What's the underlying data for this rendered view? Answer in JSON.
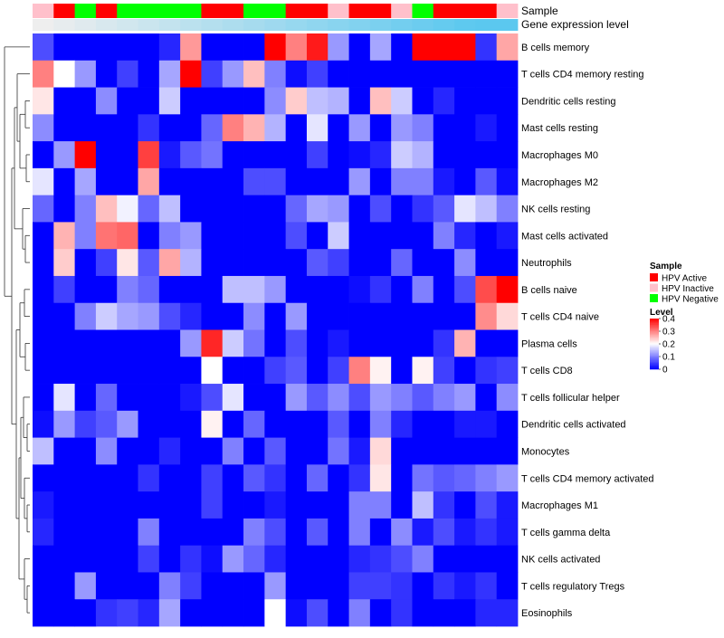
{
  "chart_data": {
    "type": "heatmap",
    "annotation_tracks": [
      "Sample",
      "Gene expression level"
    ],
    "row_labels": [
      "B cells memory",
      "T cells CD4 memory resting",
      "Dendritic cells resting",
      "Mast cells resting",
      "Macrophages M0",
      "Macrophages M2",
      "NK cells resting",
      "Mast cells activated",
      "Neutrophils",
      "B cells naive",
      "T cells CD4 naive",
      "Plasma cells",
      "T cells CD8",
      "T cells follicular helper",
      "Dendritic cells activated",
      "Monocytes",
      "T cells CD4 memory activated",
      "Macrophages M1",
      "T cells gamma delta",
      "NK cells activated",
      "T cells regulatory  Tregs",
      "Eosinophils"
    ],
    "sample_groups": [
      "HPV Inactive",
      "HPV Active",
      "HPV Negative",
      "HPV Active",
      "HPV Negative",
      "HPV Negative",
      "HPV Negative",
      "HPV Negative",
      "HPV Active",
      "HPV Active",
      "HPV Negative",
      "HPV Negative",
      "HPV Active",
      "HPV Active",
      "HPV Inactive",
      "HPV Active",
      "HPV Active",
      "HPV Inactive",
      "HPV Negative",
      "HPV Active",
      "HPV Active",
      "HPV Active",
      "HPV Inactive"
    ],
    "gene_expression_gradient": [
      "#eeeeee",
      "#5bc8ef"
    ],
    "values": [
      [
        0.06,
        0,
        0,
        0,
        0,
        0,
        0.03,
        0.28,
        0,
        0,
        0,
        0.4,
        0.3,
        0.38,
        0.12,
        0,
        0.13,
        0,
        0.4,
        0.4,
        0.4,
        0.04,
        0.27
      ],
      [
        0.3,
        0.2,
        0.12,
        0,
        0.05,
        0,
        0.13,
        0.4,
        0.05,
        0.12,
        0.25,
        0.1,
        0.01,
        0.05,
        0,
        0,
        0,
        0,
        0,
        0,
        0,
        0,
        0
      ],
      [
        0.22,
        0,
        0,
        0.11,
        0,
        0,
        0.16,
        0,
        0,
        0,
        0,
        0.11,
        0.24,
        0.15,
        0.14,
        0,
        0.25,
        0.16,
        0,
        0.03,
        0,
        0,
        0
      ],
      [
        0.11,
        0,
        0,
        0,
        0,
        0.04,
        0,
        0,
        0.08,
        0.3,
        0.26,
        0.14,
        0,
        0.18,
        0,
        0.12,
        0,
        0.12,
        0.1,
        0,
        0,
        0.02,
        0
      ],
      [
        0,
        0.12,
        0.4,
        0,
        0,
        0.35,
        0.02,
        0.07,
        0.09,
        0,
        0,
        0,
        0,
        0.05,
        0,
        0.01,
        0.03,
        0.16,
        0.14,
        0,
        0,
        0,
        0
      ],
      [
        0.18,
        0,
        0.13,
        0,
        0,
        0.27,
        0,
        0,
        0,
        0,
        0.06,
        0.06,
        0,
        0,
        0,
        0.12,
        0,
        0.1,
        0.1,
        0.02,
        0,
        0.07,
        0.01
      ],
      [
        0.08,
        0,
        0.1,
        0.25,
        0.19,
        0.08,
        0.15,
        0,
        0,
        0,
        0,
        0,
        0.08,
        0.13,
        0.12,
        0,
        0.06,
        0,
        0.04,
        0.07,
        0.18,
        0.15,
        0.1
      ],
      [
        0,
        0.26,
        0.1,
        0.31,
        0.32,
        0,
        0.1,
        0.12,
        0,
        0,
        0,
        0,
        0.06,
        0,
        0.16,
        0,
        0,
        0,
        0,
        0.1,
        0.03,
        0,
        0.02
      ],
      [
        0,
        0.24,
        0,
        0.05,
        0.22,
        0.07,
        0.27,
        0.14,
        0,
        0,
        0,
        0,
        0,
        0.07,
        0.05,
        0,
        0,
        0.08,
        0,
        0,
        0.11,
        0,
        0
      ],
      [
        0,
        0.05,
        0,
        0,
        0.1,
        0.08,
        0,
        0,
        0,
        0.15,
        0.15,
        0.12,
        0,
        0,
        0,
        0.01,
        0.04,
        0,
        0.1,
        0,
        0.06,
        0.34,
        0.4
      ],
      [
        0,
        0,
        0.1,
        0.16,
        0.13,
        0.12,
        0.06,
        0.03,
        0,
        0,
        0.11,
        0,
        0.12,
        0,
        0,
        0,
        0,
        0,
        0,
        0,
        0,
        0.29,
        0.23
      ],
      [
        0,
        0,
        0,
        0,
        0,
        0,
        0,
        0.12,
        0.37,
        0.16,
        0.09,
        0,
        0.06,
        0,
        0.02,
        0,
        0,
        0,
        0,
        0.04,
        0.26,
        0,
        0
      ],
      [
        0,
        0,
        0,
        0,
        0,
        0,
        0,
        0,
        0.2,
        0,
        0,
        0.05,
        0.07,
        0,
        0.05,
        0.3,
        0.21,
        0,
        0.21,
        0.05,
        0,
        0.04,
        0.05
      ],
      [
        0,
        0.18,
        0,
        0.08,
        0,
        0,
        0,
        0.02,
        0.06,
        0.18,
        0,
        0,
        0.12,
        0.07,
        0.11,
        0.06,
        0.12,
        0.1,
        0.07,
        0.1,
        0.12,
        0,
        0.11
      ],
      [
        0.01,
        0.12,
        0.05,
        0.07,
        0.12,
        0,
        0,
        0,
        0.21,
        0,
        0.08,
        0,
        0,
        0,
        0.07,
        0,
        0.1,
        0.03,
        0,
        0,
        0.02,
        0.02,
        0
      ],
      [
        0.15,
        0,
        0,
        0.11,
        0,
        0,
        0.03,
        0,
        0,
        0.1,
        0,
        0.07,
        0,
        0,
        0.09,
        0.02,
        0.23,
        0,
        0,
        0,
        0,
        0,
        0
      ],
      [
        0,
        0,
        0,
        0,
        0,
        0.04,
        0,
        0,
        0.05,
        0,
        0.07,
        0.04,
        0,
        0.08,
        0,
        0.04,
        0.22,
        0,
        0.09,
        0.07,
        0.08,
        0.1,
        0.12
      ],
      [
        0.02,
        0,
        0,
        0,
        0,
        0,
        0,
        0,
        0.05,
        0,
        0,
        0.02,
        0,
        0,
        0,
        0.1,
        0.1,
        0,
        0.15,
        0.04,
        0,
        0.06,
        0.02
      ],
      [
        0.03,
        0,
        0,
        0,
        0,
        0.1,
        0,
        0,
        0,
        0,
        0.1,
        0.06,
        0,
        0.07,
        0,
        0.1,
        0,
        0.11,
        0.02,
        0.06,
        0.02,
        0.04,
        0.02
      ],
      [
        0,
        0,
        0,
        0,
        0,
        0.05,
        0,
        0.04,
        0.01,
        0.12,
        0.08,
        0.03,
        0,
        0,
        0,
        0.03,
        0.04,
        0.06,
        0.1,
        0,
        0,
        0,
        0
      ],
      [
        0,
        0,
        0.12,
        0,
        0,
        0,
        0.1,
        0.05,
        0,
        0,
        0,
        0.12,
        0,
        0,
        0,
        0.05,
        0.05,
        0.04,
        0,
        0.04,
        0.02,
        0.04,
        0
      ],
      [
        0,
        0,
        0,
        0.04,
        0.05,
        0.03,
        0.13,
        0,
        0,
        0,
        0,
        0.2,
        0.01,
        0.06,
        0,
        0.1,
        0,
        0.04,
        0,
        0,
        0,
        0.03,
        0.03
      ]
    ],
    "legend": {
      "sample": {
        "title": "Sample",
        "entries": [
          {
            "label": "HPV Active",
            "color": "#ff0000"
          },
          {
            "label": "HPV Inactive",
            "color": "#ffc0cb"
          },
          {
            "label": "HPV Negative",
            "color": "#00ff00"
          }
        ]
      },
      "level": {
        "title": "Level",
        "range": [
          0,
          0.4
        ],
        "ticks": [
          {
            "value": 0.4,
            "label": "0.4"
          },
          {
            "value": 0.3,
            "label": "0.3"
          },
          {
            "value": 0.2,
            "label": "0.2"
          },
          {
            "value": 0.1,
            "label": "0.1"
          },
          {
            "value": 0,
            "label": "0"
          }
        ],
        "colors": {
          "low": "#0000ff",
          "mid": "#ffffff",
          "high": "#ff0000"
        }
      }
    }
  }
}
